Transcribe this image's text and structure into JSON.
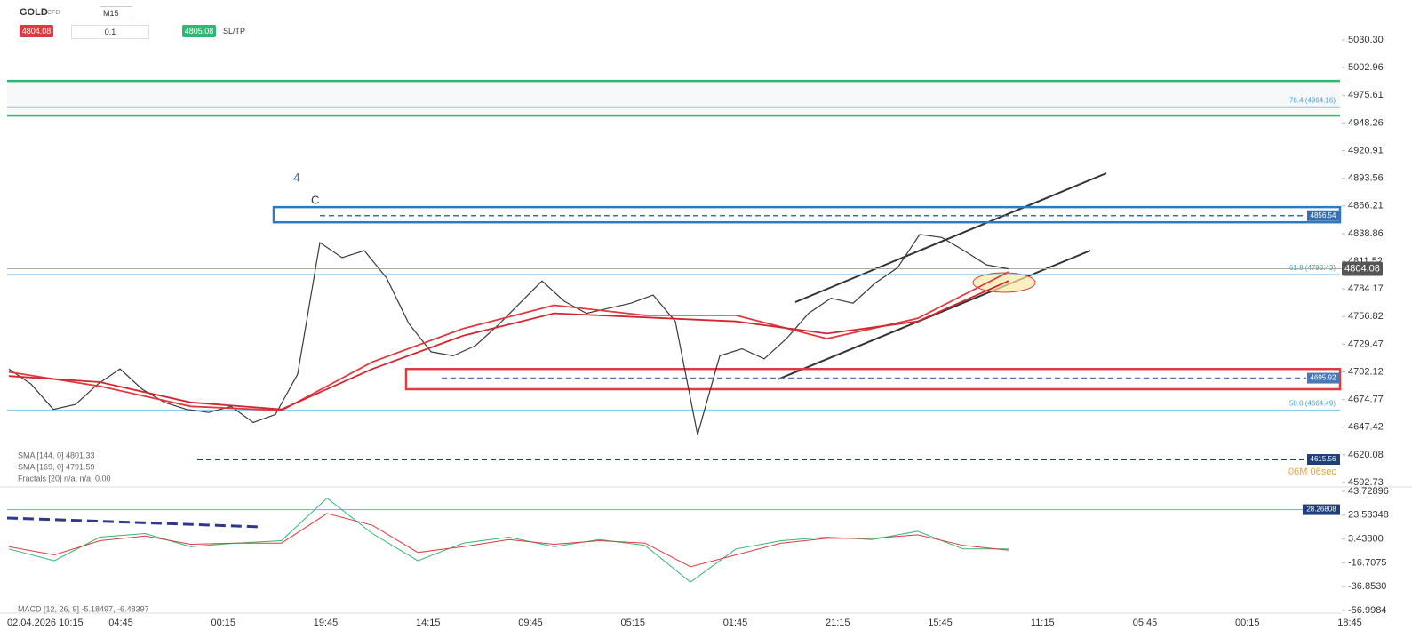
{
  "toolbar": {
    "symbol": "GOLD",
    "instrument_type": "CFD",
    "timeframe": "M15",
    "sell_price": 4804.08,
    "volume": 0.1,
    "buy_price": 4805.08,
    "sltp": "SL/TP"
  },
  "price_panel": {
    "ylim": [
      4592.73,
      5030.3
    ],
    "yticks": [
      {
        "value": 5030.3,
        "label": "5030.30"
      },
      5002.96,
      4975.61,
      4948.26,
      4920.91,
      4893.56,
      4866.21,
      4838.86,
      4811.52,
      4784.17,
      4756.82,
      4729.47,
      4702.12,
      4674.77,
      4647.42,
      4620.08,
      4592.73
    ],
    "closes": [
      4705,
      4690,
      4665,
      4670,
      4690,
      4705,
      4685,
      4672,
      4665,
      4662,
      4668,
      4652,
      4660,
      4700,
      4830,
      4815,
      4822,
      4795,
      4750,
      4722,
      4718,
      4728,
      4748,
      4770,
      4792,
      4772,
      4760,
      4765,
      4770,
      4778,
      4752,
      4640,
      4718,
      4725,
      4715,
      4735,
      4760,
      4775,
      4770,
      4790,
      4805,
      4838,
      4835,
      4822,
      4808,
      4804
    ],
    "sma_144": [
      4702,
      4688,
      4668,
      4664,
      4712,
      4745,
      4768,
      4758,
      4758,
      4735,
      4755,
      4801
    ],
    "sma_169": [
      4698,
      4692,
      4672,
      4665,
      4705,
      4738,
      4760,
      4756,
      4752,
      4740,
      4752,
      4792
    ],
    "zones": [
      {
        "range": [
          4955.5,
          4989.8
        ],
        "color": "#2eb872"
      },
      {
        "range": [
          4850,
          4865
        ],
        "color": "#2f7abf"
      },
      {
        "range": [
          4685,
          4705
        ],
        "color": "#e0393e"
      }
    ],
    "levels": [
      {
        "value": 4856.54,
        "color": "#3a6fb0"
      },
      {
        "value": 4695.92,
        "color": "#4a78b8"
      },
      {
        "value": 4615.56,
        "color": "#1f3f7a"
      }
    ],
    "fib_levels": [
      {
        "value": 4964.16,
        "label": "76.4 (4964.16)"
      },
      {
        "value": 4798.43,
        "label": "61.8 (4798.43)"
      },
      {
        "value": 4664.49,
        "label": "50.0 (4664.49)"
      }
    ],
    "current_price": 4804.08,
    "annotations": [
      "4",
      "C"
    ],
    "legend": [
      "SMA [144, 0] 4801.33",
      "SMA [169, 0] 4791.59",
      "Fractals [20] n/a, n/a, 0.00"
    ],
    "countdown": "06M 06sec"
  },
  "macd_panel": {
    "ylim": [
      -56.9984,
      43.72896
    ],
    "yticks": [
      43.72896,
      23.58348,
      {
        "value": 3.438,
        "label": "3.43800"
      },
      -16.7075,
      {
        "value": -36.853,
        "label": "-36.8530"
      },
      -56.9984
    ],
    "level": 28.26808,
    "macd": [
      -5,
      -15,
      5,
      8,
      -3,
      0,
      2,
      38,
      8,
      -15,
      0,
      5,
      -3,
      3,
      -2,
      -33,
      -5,
      2,
      5,
      3,
      10,
      -5,
      -5
    ],
    "signal": [
      -3,
      -10,
      2,
      6,
      -1,
      0,
      0,
      25,
      15,
      -8,
      -3,
      3,
      -1,
      2,
      0,
      -20,
      -10,
      0,
      4,
      4,
      7,
      -2,
      -6
    ],
    "legend": "MACD [12, 26, 9] -5.18497, -6.48397"
  },
  "x_axis_labels": [
    "02.04.2026 10:15",
    "04:45",
    "00:15",
    "19:45",
    "14:15",
    "09:45",
    "05:15",
    "01:45",
    "21:15",
    "15:45",
    "11:15",
    "05:45",
    "00:15",
    "18:45"
  ]
}
